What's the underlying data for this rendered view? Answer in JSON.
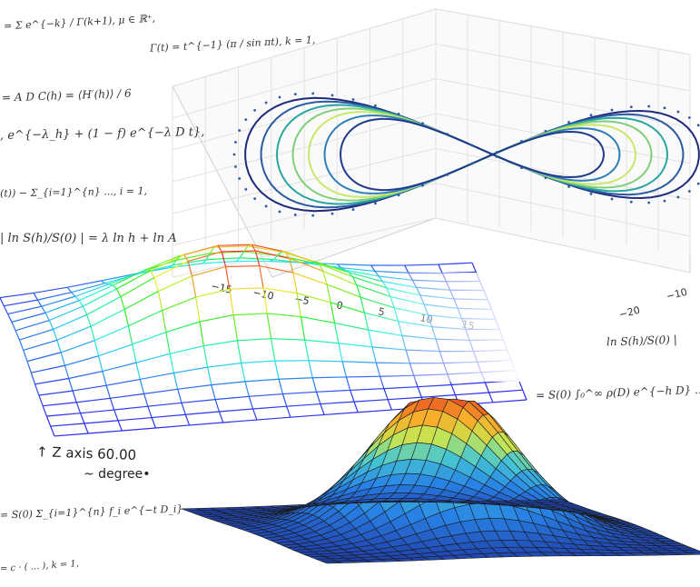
{
  "formulas": [
    {
      "id": "f1",
      "text": "= Σ e^{−k} / Γ(k+1),   μ ∈ ℝ⁺,"
    },
    {
      "id": "f2",
      "text": "Γ(t) = t^{−1} (π / sin πt),   k = 1,"
    },
    {
      "id": "f3",
      "text": "= A D C(h) = ⟨H′(h)⟩ / 6"
    },
    {
      "id": "f4",
      "text": ", e^{−λ_h} + (1 − f) e^{−λ D t},"
    },
    {
      "id": "f5",
      "text": "(t)) − Σ_{i=1}^{n} ..., i = 1,"
    },
    {
      "id": "f6",
      "text": "| ln S(h)/S(0) | = λ ln h + ln A"
    },
    {
      "id": "f7",
      "text": "ln S(h)/S(0) |"
    },
    {
      "id": "f8",
      "text": "= S(0) ∫₀^∞ ρ(D) e^{−h D} ..."
    },
    {
      "id": "f9",
      "text": "= S(0) Σ_{i=1}^{n} f_i e^{−t D_i}"
    },
    {
      "id": "f10",
      "text": "= c · ( ... ),   k = 1,"
    }
  ],
  "wire_overlay": {
    "z_axis_label": "↑ Z axis   60.00",
    "degree_label": "~ degree•"
  },
  "axes_3d": {
    "x_ticks": [
      "−15",
      "−10",
      "−5",
      "0",
      "5",
      "10",
      "15"
    ],
    "y_ticks": [
      "−10",
      "−20"
    ]
  }
}
